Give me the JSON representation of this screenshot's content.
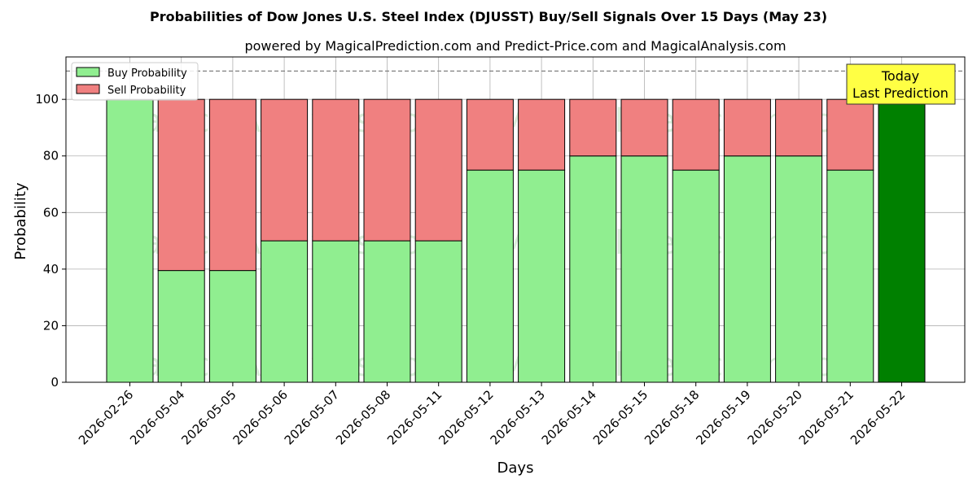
{
  "chart_data": {
    "type": "bar",
    "stacked": true,
    "title": "Probabilities of Dow Jones U.S. Steel Index (DJUSST) Buy/Sell Signals Over 15 Days (May 23)",
    "subtitle": "powered by MagicalPrediction.com and Predict-Price.com and MagicalAnalysis.com",
    "xlabel": "Days",
    "ylabel": "Probability",
    "ylim": [
      0,
      115
    ],
    "yticks": [
      0,
      20,
      40,
      60,
      80,
      100
    ],
    "grid": true,
    "legend_position": "top-left",
    "reference_line": 110,
    "categories": [
      "2026-02-26",
      "2026-05-04",
      "2026-05-05",
      "2026-05-06",
      "2026-05-07",
      "2026-05-08",
      "2026-05-11",
      "2026-05-12",
      "2026-05-13",
      "2026-05-14",
      "2026-05-15",
      "2026-05-18",
      "2026-05-19",
      "2026-05-20",
      "2026-05-21",
      "2026-05-22"
    ],
    "series": [
      {
        "name": "Buy Probability",
        "color": "#90ee90",
        "values": [
          100,
          39.5,
          39.5,
          50,
          50,
          50,
          50,
          75,
          75,
          80,
          80,
          75,
          80,
          80,
          75,
          100
        ]
      },
      {
        "name": "Sell Probability",
        "color": "#f08080",
        "values": [
          0,
          60.5,
          60.5,
          50,
          50,
          50,
          50,
          25,
          25,
          20,
          20,
          25,
          20,
          20,
          25,
          0
        ]
      }
    ],
    "highlight": {
      "index": 15,
      "color": "#008000"
    },
    "annotation": {
      "lines": [
        "Today",
        "Last Prediction"
      ],
      "color": "#ffff44"
    },
    "watermarks": [
      "MagicalAnalysis.com",
      "MagicalPrediction.com"
    ]
  }
}
